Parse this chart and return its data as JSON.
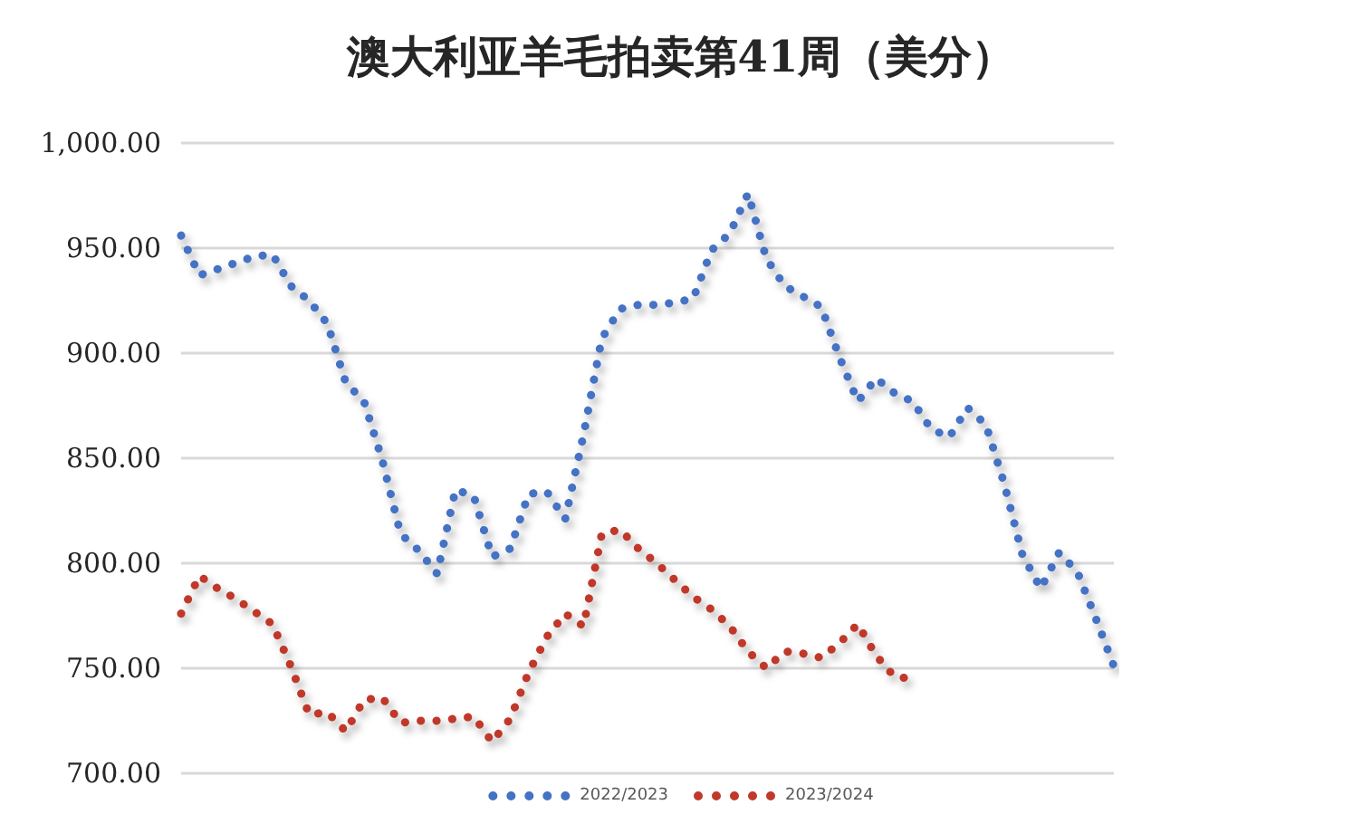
{
  "chart_data": {
    "type": "line",
    "title": "澳大利亚羊毛拍卖第41周（美分）",
    "categories": [
      null,
      null,
      null,
      null,
      null,
      null,
      null,
      null,
      null,
      null,
      null,
      null,
      null,
      null,
      null,
      null,
      null,
      null,
      null,
      null,
      null,
      null,
      null,
      null,
      null,
      null,
      null,
      null,
      null,
      null,
      null,
      null,
      null,
      null,
      null,
      null,
      null,
      null,
      null,
      null,
      null,
      null,
      null,
      null,
      null,
      null,
      null,
      null,
      null,
      null,
      null,
      null
    ],
    "series": [
      {
        "name": "2022/2023",
        "color": "#4472c4",
        "values": [
          956,
          937,
          940,
          943,
          946,
          947,
          932,
          925,
          914,
          886,
          877,
          849,
          814,
          806,
          795,
          835,
          832,
          803,
          807,
          833,
          834,
          821,
          861,
          907,
          921,
          923,
          923,
          924,
          926,
          949,
          957,
          976,
          945,
          932,
          927,
          922,
          898,
          877,
          888,
          881,
          877,
          864,
          860,
          874,
          866,
          838,
          804,
          788,
          805,
          796,
          774,
          751
        ]
      },
      {
        "name": "2023/2024",
        "color": "#c0392b",
        "values": [
          776,
          794,
          788,
          783,
          777,
          771,
          751,
          728,
          729,
          720,
          735,
          736,
          724,
          725,
          725,
          726,
          727,
          715,
          726,
          748,
          765,
          776,
          770,
          814,
          816,
          807,
          800,
          792,
          784,
          778,
          770,
          758,
          750,
          758,
          757,
          755,
          762,
          771,
          756,
          746,
          745,
          null,
          null,
          null,
          null,
          null,
          null,
          null,
          null,
          null,
          null,
          null
        ]
      }
    ],
    "ylim": [
      700,
      1000
    ],
    "yticks": [
      {
        "value": 700,
        "label": "700.00"
      },
      {
        "value": 750,
        "label": "750.00"
      },
      {
        "value": 800,
        "label": "800.00"
      },
      {
        "value": 850,
        "label": "850.00"
      },
      {
        "value": 900,
        "label": "900.00"
      },
      {
        "value": 950,
        "label": "950.00"
      },
      {
        "value": 1000,
        "label": "1,000.00"
      }
    ],
    "grid": "y",
    "legend": "bottom",
    "line_style": "dotted",
    "marker": "none"
  }
}
